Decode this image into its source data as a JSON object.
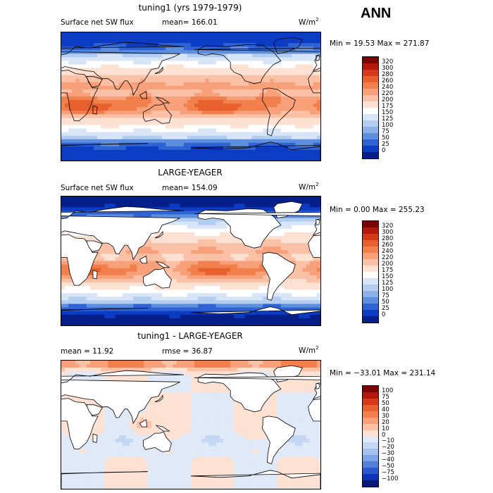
{
  "season": "ANN",
  "panels": [
    {
      "title": "tuning1 (yrs 1979-1979)",
      "variable": "Surface net SW flux",
      "stat_left": "mean=  166.01",
      "stat_right": "",
      "units": "W/m",
      "units_sup": "2",
      "minmax": "Min =   19.53 Max =  271.87",
      "land_masked": false
    },
    {
      "title": "LARGE-YEAGER",
      "variable": "Surface net SW flux",
      "stat_left": "mean=  154.09",
      "stat_right": "",
      "units": "W/m",
      "units_sup": "2",
      "minmax": "Min =    0.00 Max =  255.23",
      "land_masked": true
    },
    {
      "title": "tuning1 - LARGE-YEAGER",
      "variable": "mean =    11.92",
      "stat_left": "",
      "stat_right": "rmse =    36.87",
      "units": "W/m",
      "units_sup": "2",
      "minmax": "Min = −33.01 Max =  231.14",
      "land_masked": true
    }
  ],
  "chart_data": [
    {
      "type": "heatmap",
      "title": "tuning1 (yrs 1979-1979)",
      "subtitle": "Surface net SW flux",
      "mean": 166.01,
      "min": 19.53,
      "max": 271.87,
      "units": "W/m2",
      "colorbar_levels": [
        0,
        25,
        50,
        75,
        100,
        125,
        150,
        175,
        200,
        220,
        240,
        260,
        280,
        300,
        320
      ],
      "colorbar_labels": [
        "320",
        "300",
        "280",
        "260",
        "240",
        "220",
        "200",
        "175",
        "150",
        "125",
        "100",
        "75",
        "50",
        "25",
        "0"
      ],
      "colorbar_colors": [
        "#7a0403",
        "#b3180b",
        "#d6391a",
        "#e9602f",
        "#f2804d",
        "#f7a07a",
        "#fbc1a6",
        "#fde1d3",
        "#ffffff",
        "#d7e5f6",
        "#b3cdf0",
        "#8cb1e8",
        "#5e8fdf",
        "#2f63d3",
        "#0c3cc3",
        "#071f8a"
      ]
    },
    {
      "type": "heatmap",
      "title": "LARGE-YEAGER",
      "subtitle": "Surface net SW flux",
      "mean": 154.09,
      "min": 0.0,
      "max": 255.23,
      "units": "W/m2",
      "colorbar_levels": [
        0,
        25,
        50,
        75,
        100,
        125,
        150,
        175,
        200,
        220,
        240,
        260,
        280,
        300,
        320
      ],
      "colorbar_labels": [
        "320",
        "300",
        "280",
        "260",
        "240",
        "220",
        "200",
        "175",
        "150",
        "125",
        "100",
        "75",
        "50",
        "25",
        "0"
      ],
      "colorbar_colors": [
        "#7a0403",
        "#b3180b",
        "#d6391a",
        "#e9602f",
        "#f2804d",
        "#f7a07a",
        "#fbc1a6",
        "#fde1d3",
        "#ffffff",
        "#d7e5f6",
        "#b3cdf0",
        "#8cb1e8",
        "#5e8fdf",
        "#2f63d3",
        "#0c3cc3",
        "#071f8a"
      ]
    },
    {
      "type": "heatmap",
      "title": "tuning1 - LARGE-YEAGER",
      "mean": 11.92,
      "rmse": 36.87,
      "min": -33.01,
      "max": 231.14,
      "units": "W/m2",
      "colorbar_levels": [
        -100,
        -75,
        -50,
        -40,
        -30,
        -20,
        -10,
        0,
        10,
        20,
        30,
        40,
        50,
        75,
        100
      ],
      "colorbar_labels": [
        "100",
        "75",
        "50",
        "40",
        "30",
        "20",
        "10",
        "0",
        "−10",
        "−20",
        "−30",
        "−40",
        "−50",
        "−75",
        "−100"
      ],
      "colorbar_colors": [
        "#7a0403",
        "#b3180b",
        "#d6391a",
        "#e9602f",
        "#f2804d",
        "#f7a07a",
        "#fbc1a6",
        "#fde1d3",
        "#dfe9f7",
        "#c3d6f2",
        "#a6c1ec",
        "#7fa3e4",
        "#5381da",
        "#2a59cd",
        "#0c33b8",
        "#071a7a"
      ]
    }
  ]
}
